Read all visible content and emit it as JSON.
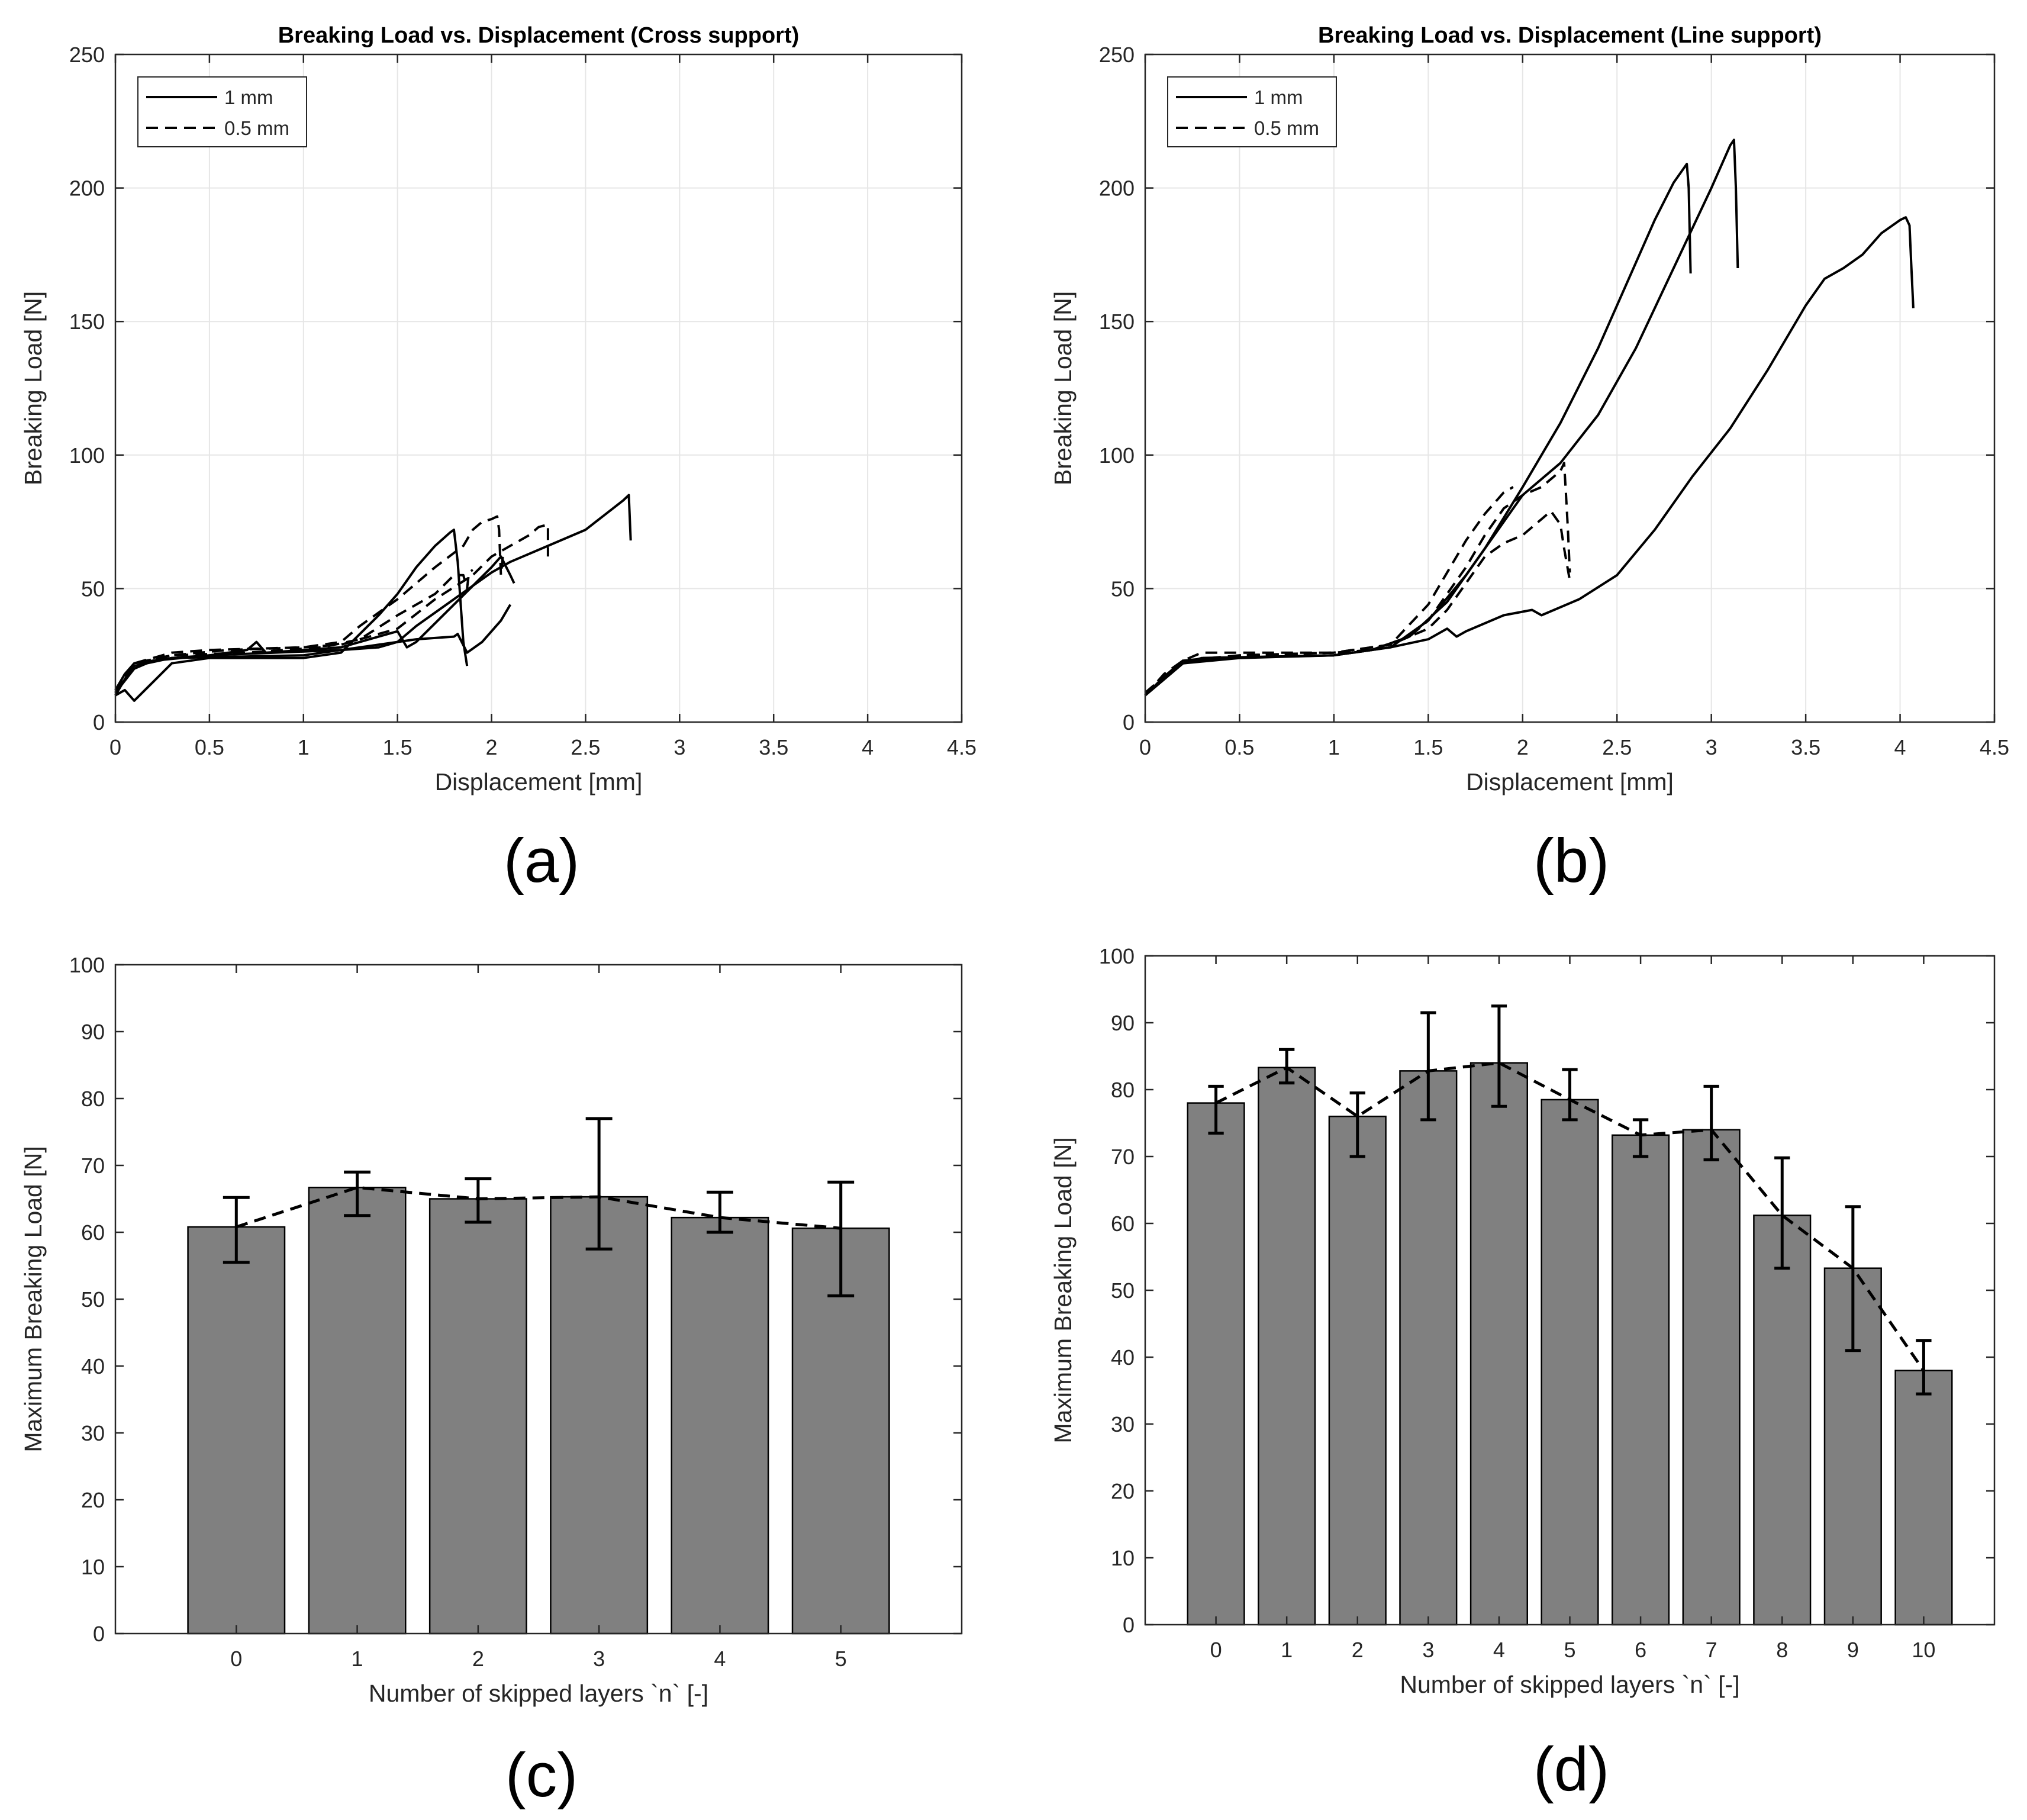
{
  "chart_data": [
    {
      "id": "a",
      "type": "line",
      "panel_label": "(a)",
      "title": "Breaking Load vs. Displacement (Cross support)",
      "xlabel": "Displacement [mm]",
      "ylabel": "Breaking Load [N]",
      "xlim": [
        0,
        4.5
      ],
      "ylim": [
        0,
        250
      ],
      "xticks": [
        "0",
        "0.5",
        "1",
        "1.5",
        "2",
        "2.5",
        "3",
        "3.5",
        "4",
        "4.5"
      ],
      "yticks": [
        "0",
        "50",
        "100",
        "150",
        "200",
        "250"
      ],
      "grid": true,
      "legend": {
        "position": "top-left",
        "entries": [
          {
            "label": "1 mm",
            "style": "solid"
          },
          {
            "label": "0.5 mm",
            "style": "dashed"
          }
        ]
      },
      "series": [
        {
          "name": "1 mm",
          "style": "solid",
          "points": [
            [
              0,
              10
            ],
            [
              0.05,
              12
            ],
            [
              0.1,
              8
            ],
            [
              0.2,
              15
            ],
            [
              0.3,
              22
            ],
            [
              0.5,
              24
            ],
            [
              1.0,
              24
            ],
            [
              1.2,
              26
            ],
            [
              1.4,
              40
            ],
            [
              1.5,
              48
            ],
            [
              1.6,
              58
            ],
            [
              1.7,
              66
            ],
            [
              1.78,
              71
            ],
            [
              1.8,
              72
            ],
            [
              1.82,
              60
            ],
            [
              1.85,
              30
            ],
            [
              1.87,
              21
            ]
          ]
        },
        {
          "name": "1 mm",
          "style": "solid",
          "points": [
            [
              0,
              12
            ],
            [
              0.05,
              18
            ],
            [
              0.1,
              22
            ],
            [
              0.3,
              24
            ],
            [
              1.0,
              25
            ],
            [
              1.3,
              28
            ],
            [
              1.5,
              30
            ],
            [
              1.6,
              36
            ],
            [
              1.8,
              46
            ],
            [
              2.0,
              56
            ],
            [
              2.1,
              60
            ],
            [
              2.5,
              72
            ],
            [
              2.7,
              83
            ],
            [
              2.73,
              85
            ],
            [
              2.74,
              68
            ]
          ]
        },
        {
          "name": "1 mm",
          "style": "solid",
          "points": [
            [
              0,
              11
            ],
            [
              0.1,
              20
            ],
            [
              0.2,
              23
            ],
            [
              0.5,
              25
            ],
            [
              1.2,
              27
            ],
            [
              1.4,
              28
            ],
            [
              1.5,
              30
            ],
            [
              1.6,
              31
            ],
            [
              1.8,
              32
            ],
            [
              1.82,
              33
            ],
            [
              1.87,
              26
            ],
            [
              1.95,
              30
            ],
            [
              2.05,
              38
            ],
            [
              2.1,
              44
            ]
          ]
        },
        {
          "name": "1 mm",
          "style": "solid",
          "points": [
            [
              0,
              11
            ],
            [
              0.1,
              21
            ],
            [
              0.3,
              24
            ],
            [
              0.5,
              25
            ],
            [
              0.7,
              27
            ],
            [
              0.75,
              30
            ],
            [
              0.8,
              26
            ],
            [
              1.2,
              28
            ],
            [
              1.4,
              32
            ],
            [
              1.5,
              34
            ],
            [
              1.55,
              28
            ],
            [
              1.6,
              30
            ],
            [
              1.8,
              44
            ],
            [
              2.0,
              58
            ],
            [
              2.05,
              62
            ],
            [
              2.1,
              55
            ],
            [
              2.12,
              52
            ]
          ]
        },
        {
          "name": "0.5 mm",
          "style": "dashed",
          "points": [
            [
              0,
              10
            ],
            [
              0.1,
              22
            ],
            [
              0.3,
              26
            ],
            [
              0.5,
              27
            ],
            [
              1.0,
              28
            ],
            [
              1.2,
              29
            ],
            [
              1.4,
              33
            ],
            [
              1.5,
              35
            ],
            [
              1.7,
              46
            ],
            [
              1.9,
              55
            ],
            [
              2.0,
              62
            ],
            [
              2.1,
              66
            ],
            [
              2.2,
              70
            ],
            [
              2.25,
              73
            ],
            [
              2.3,
              74
            ],
            [
              2.3,
              62
            ]
          ]
        },
        {
          "name": "0.5 mm",
          "style": "dashed",
          "points": [
            [
              0,
              11
            ],
            [
              0.1,
              22
            ],
            [
              0.3,
              25
            ],
            [
              0.6,
              27
            ],
            [
              1.0,
              28
            ],
            [
              1.2,
              30
            ],
            [
              1.3,
              36
            ],
            [
              1.5,
              46
            ],
            [
              1.7,
              58
            ],
            [
              1.85,
              66
            ],
            [
              1.9,
              72
            ],
            [
              1.95,
              75
            ],
            [
              2.0,
              76
            ],
            [
              2.03,
              77
            ],
            [
              2.04,
              72
            ],
            [
              2.05,
              55
            ],
            [
              2.06,
              62
            ]
          ]
        },
        {
          "name": "0.5 mm",
          "style": "dashed",
          "points": [
            [
              0,
              12
            ],
            [
              0.1,
              22
            ],
            [
              0.3,
              25
            ],
            [
              0.7,
              26
            ],
            [
              1.1,
              28
            ],
            [
              1.3,
              31
            ],
            [
              1.5,
              40
            ],
            [
              1.7,
              48
            ],
            [
              1.8,
              55
            ],
            [
              1.85,
              55
            ],
            [
              1.87,
              50
            ],
            [
              1.88,
              56
            ],
            [
              1.9,
              57
            ]
          ]
        }
      ]
    },
    {
      "id": "b",
      "type": "line",
      "panel_label": "(b)",
      "title": "Breaking Load vs. Displacement (Line support)",
      "xlabel": "Displacement [mm]",
      "ylabel": "Breaking Load [N]",
      "xlim": [
        0,
        4.5
      ],
      "ylim": [
        0,
        250
      ],
      "xticks": [
        "0",
        "0.5",
        "1",
        "1.5",
        "2",
        "2.5",
        "3",
        "3.5",
        "4",
        "4.5"
      ],
      "yticks": [
        "0",
        "50",
        "100",
        "150",
        "200",
        "250"
      ],
      "grid": true,
      "legend": {
        "position": "top-left",
        "entries": [
          {
            "label": "1 mm",
            "style": "solid"
          },
          {
            "label": "0.5 mm",
            "style": "dashed"
          }
        ]
      },
      "series": [
        {
          "name": "1 mm",
          "style": "solid",
          "points": [
            [
              0,
              10
            ],
            [
              0.1,
              16
            ],
            [
              0.2,
              22
            ],
            [
              0.3,
              24
            ],
            [
              1.0,
              25
            ],
            [
              1.2,
              27
            ],
            [
              1.4,
              32
            ],
            [
              1.6,
              45
            ],
            [
              1.8,
              65
            ],
            [
              2.0,
              88
            ],
            [
              2.2,
              112
            ],
            [
              2.4,
              140
            ],
            [
              2.6,
              172
            ],
            [
              2.7,
              188
            ],
            [
              2.8,
              202
            ],
            [
              2.87,
              209
            ],
            [
              2.88,
              200
            ],
            [
              2.89,
              168
            ]
          ]
        },
        {
          "name": "1 mm",
          "style": "solid",
          "points": [
            [
              0,
              10
            ],
            [
              0.1,
              17
            ],
            [
              0.2,
              23
            ],
            [
              0.4,
              24
            ],
            [
              1.0,
              25
            ],
            [
              1.3,
              28
            ],
            [
              1.5,
              38
            ],
            [
              1.7,
              55
            ],
            [
              1.9,
              75
            ],
            [
              2.0,
              85
            ],
            [
              2.2,
              97
            ],
            [
              2.4,
              115
            ],
            [
              2.6,
              140
            ],
            [
              2.8,
              170
            ],
            [
              3.0,
              200
            ],
            [
              3.1,
              216
            ],
            [
              3.12,
              218
            ],
            [
              3.13,
              200
            ],
            [
              3.14,
              170
            ]
          ]
        },
        {
          "name": "1 mm",
          "style": "solid",
          "points": [
            [
              0,
              10
            ],
            [
              0.2,
              22
            ],
            [
              0.5,
              24
            ],
            [
              1.0,
              25
            ],
            [
              1.3,
              28
            ],
            [
              1.5,
              31
            ],
            [
              1.6,
              35
            ],
            [
              1.65,
              32
            ],
            [
              1.7,
              34
            ],
            [
              1.9,
              40
            ],
            [
              2.05,
              42
            ],
            [
              2.1,
              40
            ],
            [
              2.3,
              46
            ],
            [
              2.5,
              55
            ],
            [
              2.7,
              72
            ],
            [
              2.9,
              92
            ],
            [
              3.1,
              110
            ],
            [
              3.3,
              132
            ],
            [
              3.5,
              156
            ],
            [
              3.6,
              166
            ],
            [
              3.7,
              170
            ],
            [
              3.8,
              175
            ],
            [
              3.9,
              183
            ],
            [
              4.0,
              188
            ],
            [
              4.03,
              189
            ],
            [
              4.05,
              186
            ],
            [
              4.06,
              170
            ],
            [
              4.07,
              155
            ]
          ]
        },
        {
          "name": "0.5 mm",
          "style": "dashed",
          "points": [
            [
              0,
              10
            ],
            [
              0.1,
              18
            ],
            [
              0.2,
              23
            ],
            [
              0.3,
              26
            ],
            [
              1.0,
              26
            ],
            [
              1.2,
              27
            ],
            [
              1.4,
              32
            ],
            [
              1.5,
              38
            ],
            [
              1.6,
              48
            ],
            [
              1.7,
              58
            ],
            [
              1.8,
              70
            ],
            [
              1.9,
              80
            ],
            [
              2.0,
              85
            ],
            [
              2.1,
              88
            ],
            [
              2.2,
              94
            ],
            [
              2.22,
              97
            ],
            [
              2.23,
              85
            ],
            [
              2.24,
              72
            ],
            [
              2.25,
              56
            ]
          ]
        },
        {
          "name": "0.5 mm",
          "style": "dashed",
          "points": [
            [
              0,
              11
            ],
            [
              0.2,
              22
            ],
            [
              0.5,
              25
            ],
            [
              1.0,
              26
            ],
            [
              1.3,
              29
            ],
            [
              1.5,
              44
            ],
            [
              1.6,
              56
            ],
            [
              1.7,
              68
            ],
            [
              1.8,
              78
            ],
            [
              1.9,
              86
            ],
            [
              1.95,
              88
            ]
          ]
        },
        {
          "name": "0.5 mm",
          "style": "dashed",
          "points": [
            [
              0,
              11
            ],
            [
              0.2,
              23
            ],
            [
              0.5,
              25
            ],
            [
              1.0,
              26
            ],
            [
              1.3,
              29
            ],
            [
              1.5,
              35
            ],
            [
              1.6,
              42
            ],
            [
              1.7,
              52
            ],
            [
              1.8,
              62
            ],
            [
              1.9,
              67
            ],
            [
              2.0,
              70
            ],
            [
              2.1,
              76
            ],
            [
              2.15,
              79
            ],
            [
              2.2,
              74
            ],
            [
              2.22,
              65
            ],
            [
              2.25,
              53
            ]
          ]
        }
      ]
    },
    {
      "id": "c",
      "type": "bar",
      "panel_label": "(c)",
      "title": "",
      "xlabel": "Number of skipped layers `n` [-]",
      "ylabel": "Maximum Breaking Load [N]",
      "xlim": [
        -1,
        6
      ],
      "ylim": [
        0,
        100
      ],
      "yticks": [
        "0",
        "10",
        "20",
        "30",
        "40",
        "50",
        "60",
        "70",
        "80",
        "90",
        "100"
      ],
      "categories": [
        "0",
        "1",
        "2",
        "3",
        "4",
        "5"
      ],
      "values": [
        60.8,
        66.7,
        65.0,
        65.3,
        62.2,
        60.6
      ],
      "error_low": [
        55.5,
        62.5,
        61.5,
        57.5,
        60.0,
        50.5
      ],
      "error_high": [
        65.2,
        69.0,
        68.0,
        77.0,
        66.0,
        67.5
      ],
      "trend_line": "dashed",
      "grid": false
    },
    {
      "id": "d",
      "type": "bar",
      "panel_label": "(d)",
      "title": "",
      "xlabel": "Number of skipped layers `n` [-]",
      "ylabel": "Maximum Breaking Load [N]",
      "xlim": [
        -1,
        11
      ],
      "ylim": [
        0,
        100
      ],
      "yticks": [
        "0",
        "10",
        "20",
        "30",
        "40",
        "50",
        "60",
        "70",
        "80",
        "90",
        "100"
      ],
      "categories": [
        "0",
        "1",
        "2",
        "3",
        "4",
        "5",
        "6",
        "7",
        "8",
        "9",
        "10"
      ],
      "values": [
        78.0,
        83.3,
        76.0,
        82.8,
        84.0,
        78.5,
        73.2,
        74.0,
        61.2,
        53.3,
        38.0
      ],
      "error_low": [
        73.5,
        81.0,
        70.0,
        75.5,
        77.5,
        75.5,
        70.0,
        69.5,
        53.3,
        41.0,
        34.5
      ],
      "error_high": [
        80.5,
        86.0,
        79.5,
        91.5,
        92.5,
        83.0,
        75.5,
        80.5,
        69.8,
        62.5,
        42.5
      ],
      "trend_line": "dashed",
      "grid": false
    }
  ]
}
